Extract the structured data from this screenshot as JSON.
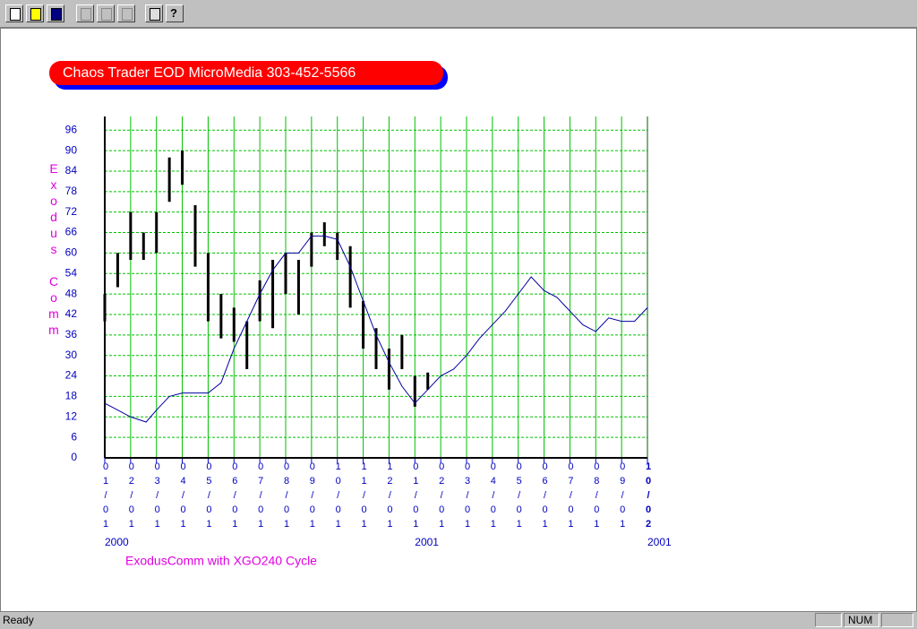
{
  "status": {
    "left": "Ready",
    "indicator": "NUM"
  },
  "chart_data": {
    "type": "range_bar",
    "title": "Chaos Trader EOD MicroMedia 303-452-5566",
    "ylabel": "Exodus Comm",
    "caption": "ExodusComm with  XGO240 Cycle",
    "x": [
      0,
      0.5,
      1,
      1.5,
      2,
      2.5,
      3,
      3.5,
      4,
      4.5,
      5,
      5.5,
      6,
      6.5,
      7,
      7.5,
      8,
      8.5,
      9,
      9.5,
      10,
      10.5,
      11,
      11.5,
      12,
      12.5
    ],
    "high": [
      48,
      60,
      72,
      66,
      72,
      88,
      90,
      74,
      60,
      48,
      44,
      40,
      52,
      58,
      60,
      58,
      66,
      69,
      66,
      62,
      46,
      38,
      32,
      36,
      24,
      25
    ],
    "low": [
      40,
      50,
      58,
      58,
      60,
      75,
      80,
      56,
      40,
      35,
      34,
      26,
      40,
      38,
      48,
      42,
      56,
      62,
      58,
      44,
      32,
      26,
      20,
      26,
      15,
      20
    ],
    "bar_color": "#000000",
    "cycle": {
      "color": "#0000a0",
      "x": [
        0,
        1,
        1.6,
        2,
        2.5,
        3,
        4,
        4.5,
        5,
        5.5,
        6,
        6.5,
        7,
        7.5,
        8,
        8.5,
        9,
        9.5,
        10,
        10.5,
        11,
        11.5,
        12,
        12.5,
        13,
        13.5,
        14,
        14.5,
        15,
        15.5,
        16,
        16.5,
        17,
        17.5,
        18,
        18.5,
        19,
        19.5,
        20,
        20.5,
        21
      ],
      "values": [
        16,
        12,
        10.5,
        14,
        18,
        19,
        19,
        22,
        32,
        40,
        48,
        55,
        60,
        60,
        65,
        65,
        64,
        56,
        46,
        36,
        28,
        21,
        16,
        20,
        24,
        26,
        30,
        35,
        39,
        43,
        48,
        53,
        49,
        47,
        43,
        39,
        37,
        41,
        40,
        40,
        44
      ]
    },
    "xlim": [
      0,
      21
    ],
    "ylim": [
      0,
      100
    ],
    "yticks": [
      0,
      6,
      12,
      18,
      24,
      30,
      36,
      42,
      48,
      54,
      60,
      66,
      72,
      78,
      84,
      90,
      96
    ],
    "xticks": [
      {
        "value": 0,
        "label": "01/01"
      },
      {
        "value": 1,
        "label": "02/01"
      },
      {
        "value": 2,
        "label": "03/01"
      },
      {
        "value": 3,
        "label": "04/01"
      },
      {
        "value": 4,
        "label": "05/01"
      },
      {
        "value": 5,
        "label": "06/01"
      },
      {
        "value": 6,
        "label": "07/01"
      },
      {
        "value": 7,
        "label": "08/01"
      },
      {
        "value": 8,
        "label": "09/01"
      },
      {
        "value": 9,
        "label": "10/01"
      },
      {
        "value": 10,
        "label": "11/01"
      },
      {
        "value": 11,
        "label": "12/01"
      },
      {
        "value": 12,
        "label": "01/01"
      },
      {
        "value": 13,
        "label": "02/01"
      },
      {
        "value": 14,
        "label": "03/01"
      },
      {
        "value": 15,
        "label": "04/01"
      },
      {
        "value": 16,
        "label": "05/01"
      },
      {
        "value": 17,
        "label": "06/01"
      },
      {
        "value": 18,
        "label": "07/01"
      },
      {
        "value": 19,
        "label": "08/01"
      },
      {
        "value": 20,
        "label": "09/01"
      },
      {
        "value": 21,
        "label": "10/02"
      }
    ],
    "year_ticks": [
      {
        "value": 0,
        "label": "2000"
      },
      {
        "value": 12,
        "label": "2001"
      },
      {
        "value": 21,
        "label": "2001"
      }
    ],
    "grid": true,
    "grid_color": "#00c000"
  }
}
